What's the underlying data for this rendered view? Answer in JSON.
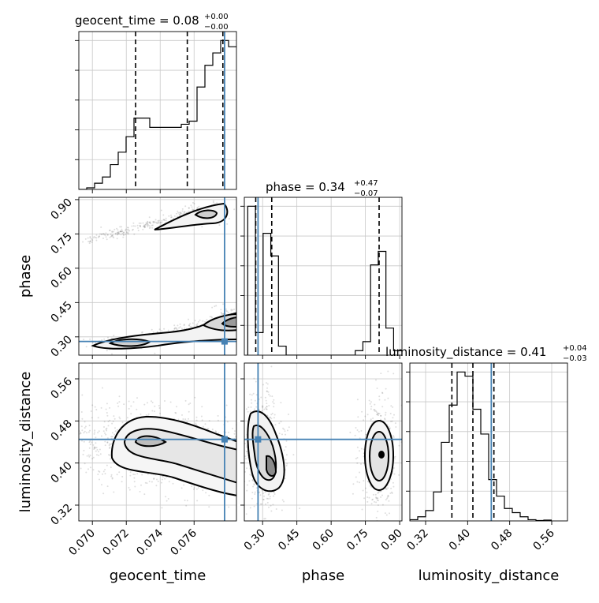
{
  "chart_data": {
    "type": "corner",
    "parameters": [
      "geocent_time",
      "phase",
      "luminosity_distance"
    ],
    "truths": {
      "geocent_time": 0.0778,
      "phase": 0.28,
      "luminosity_distance": 0.445
    },
    "axis_labels": {
      "x": [
        "geocent_time",
        "phase",
        "luminosity_distance"
      ],
      "y": [
        "phase",
        "luminosity_distance"
      ]
    },
    "ranges": {
      "geocent_time": [
        0.0692,
        0.0785
      ],
      "phase": [
        0.22,
        0.91
      ],
      "luminosity_distance": [
        0.29,
        0.59
      ]
    },
    "ticks": {
      "geocent_time": [
        "0.070",
        "0.072",
        "0.074",
        "0.076"
      ],
      "phase": [
        "0.30",
        "0.45",
        "0.60",
        "0.75",
        "0.90"
      ],
      "luminosity_distance": [
        "0.32",
        "0.40",
        "0.48",
        "0.56"
      ]
    },
    "titles": [
      {
        "name": "geocent_time",
        "value": "0.08",
        "plus": "+0.00",
        "minus": "−0.00"
      },
      {
        "name": "phase",
        "value": "0.34",
        "plus": "+0.47",
        "minus": "−0.07"
      },
      {
        "name": "luminosity_distance",
        "value": "0.41",
        "plus": "+0.04",
        "minus": "−0.03"
      }
    ],
    "quantiles": {
      "geocent_time": [
        0.07255,
        0.0756,
        0.0777
      ],
      "phase": [
        0.27,
        0.34,
        0.81
      ],
      "luminosity_distance": [
        0.37,
        0.41,
        0.45
      ]
    },
    "histograms": {
      "geocent_time": {
        "bin_start": 0.0692,
        "bin_width": 0.000465,
        "counts": [
          0,
          0.5,
          2,
          4,
          8,
          12,
          17,
          23,
          23,
          20,
          20,
          20,
          20,
          21,
          22,
          33,
          40,
          44,
          48,
          46
        ]
      },
      "phase": {
        "bin_start": 0.235,
        "bin_width": 0.0336,
        "counts": [
          33,
          5,
          27,
          22,
          2,
          0,
          0,
          0,
          0,
          0,
          0,
          0,
          0,
          0,
          1,
          3,
          20,
          23,
          6,
          1
        ]
      },
      "luminosity_distance": {
        "bin_start": 0.29,
        "bin_width": 0.015,
        "counts": [
          0.3,
          1,
          2.5,
          7,
          19,
          28,
          36,
          35,
          27,
          21,
          10,
          6,
          3,
          2,
          1,
          0.3,
          0.1,
          0.2
        ]
      }
    },
    "grid": true
  }
}
